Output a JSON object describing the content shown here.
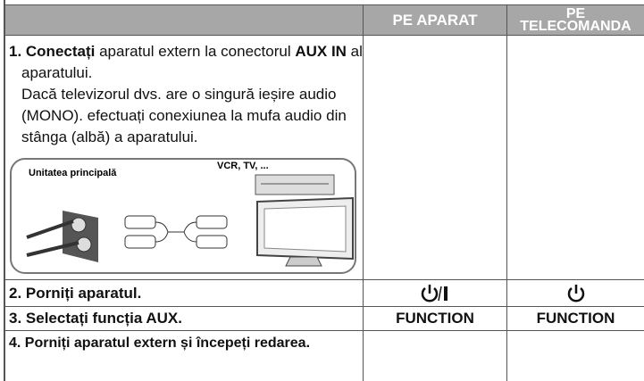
{
  "table": {
    "header": [
      "PE APARAT",
      "PE TELECOMANDA"
    ],
    "rows": [
      {
        "step": [
          "1. Conectați",
          " aparatul extern la conectorul ",
          "AUX IN",
          " al aparatului."
        ],
        "note": "Dacă televizorul dvs. are o singură ieșire audio (MONO). efectuați conexiunea la mufa audio din stânga (albă) a aparatului.",
        "illustration": {
          "main_unit": "Unitatea principală",
          "devices": "VCR, TV, ..."
        }
      },
      {
        "step": "2. Porniți aparatul."
      },
      {
        "step": "3. Selectați funcția AUX.",
        "device": "FUNCTION",
        "remote": "FUNCTION"
      },
      {
        "step": "4. Porniți aparatul extern și începeți redarea."
      }
    ]
  }
}
